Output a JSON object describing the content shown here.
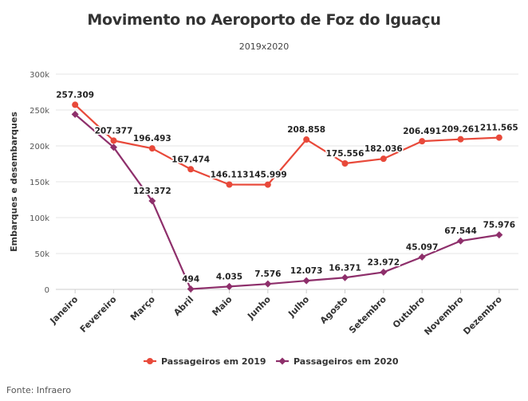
{
  "chart_data": {
    "type": "line",
    "title": "Movimento no Aeroporto de Foz do Iguaçu",
    "subtitle": "2019x2020",
    "xlabel": "",
    "ylabel": "Embarques e desembarques",
    "ylim": [
      0,
      300000
    ],
    "yticks": [
      0,
      50000,
      100000,
      150000,
      200000,
      250000,
      300000
    ],
    "yticklabels": [
      "0",
      "50k",
      "100k",
      "150k",
      "200k",
      "250k",
      "300k"
    ],
    "grid": true,
    "legend_position": "bottom",
    "categories": [
      "Janeiro",
      "Fevereiro",
      "Março",
      "Abril",
      "Maio",
      "Junho",
      "Julho",
      "Agosto",
      "Setembro",
      "Outubro",
      "Novembro",
      "Dezembro"
    ],
    "series": [
      {
        "name": "Passageiros em 2019",
        "color": "#e8493a",
        "marker": "circle",
        "values": [
          257309,
          207377,
          196493,
          167474,
          146113,
          145999,
          208858,
          175556,
          182036,
          206491,
          209261,
          211565
        ],
        "labels": [
          "257.309",
          "207.377",
          "196.493",
          "167.474",
          "146.113",
          "145.999",
          "208.858",
          "175.556",
          "182.036",
          "206.491",
          "209.261",
          "211.565"
        ]
      },
      {
        "name": "Passageiros em 2020",
        "color": "#8e2f6b",
        "marker": "diamond",
        "values": [
          244000,
          198000,
          123372,
          494,
          4035,
          7576,
          12073,
          16371,
          23972,
          45097,
          67544,
          75976
        ],
        "labels": [
          null,
          null,
          "123.372",
          "494",
          "4.035",
          "7.576",
          "12.073",
          "16.371",
          "23.972",
          "45.097",
          "67.544",
          "75.976"
        ]
      }
    ]
  },
  "source": "Fonte: Infraero"
}
